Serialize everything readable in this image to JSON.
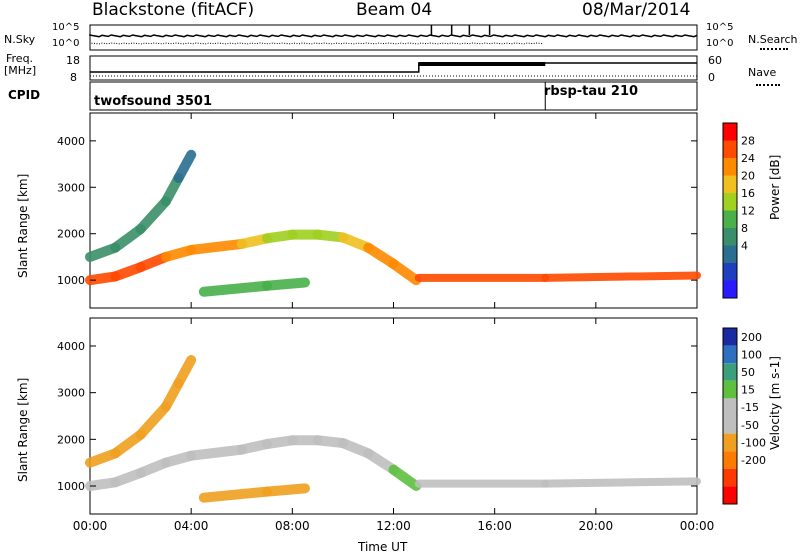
{
  "header": {
    "station": "Blackstone (fitACF)",
    "beam": "Beam 04",
    "date": "08/Mar/2014"
  },
  "top_panel": {
    "left_label": "N.Sky",
    "right_label": "N.Search",
    "left_ticks": [
      "10^5",
      "10^0"
    ],
    "right_ticks": [
      "10^5",
      "10^0"
    ]
  },
  "freq_panel": {
    "left_label_1": "Freq.",
    "left_label_2": "[MHz]",
    "right_label": "Nave",
    "left_ticks": [
      "18",
      "8"
    ],
    "right_ticks": [
      "60",
      "0"
    ]
  },
  "cpid": {
    "label": "CPID",
    "programs": [
      {
        "name": "twofsound 3501",
        "start_hour": 0
      },
      {
        "name": "rbsp-tau 210",
        "start_hour": 18
      }
    ]
  },
  "colors": {
    "power_scale": [
      "#2a1aff",
      "#1f3fbf",
      "#2b6e8f",
      "#3a8f6a",
      "#49b04a",
      "#a0d020",
      "#f0c020",
      "#ff8a00",
      "#ff4a00",
      "#ff0000"
    ],
    "velocity_scale": [
      "#1a2aa0",
      "#2e6fbf",
      "#3a9f7a",
      "#5fc040",
      "#bfbfbf",
      "#bfbfbf",
      "#f0a020",
      "#ff7a00",
      "#ff3a00",
      "#ff0000"
    ]
  },
  "chart_data": [
    {
      "type": "heatmap",
      "title": "Power",
      "ylabel": "Slant Range [km]",
      "colorbar_label": "Power [dB]",
      "colorbar_ticks": [
        "28",
        "24",
        "20",
        "16",
        "12",
        "8",
        "4"
      ],
      "colorbar_range": [
        0,
        32
      ],
      "ylim": [
        400,
        4600
      ],
      "yticks": [
        1000,
        2000,
        3000,
        4000
      ],
      "xlim": [
        0,
        24
      ],
      "bands": [
        {
          "name": "main",
          "points": [
            [
              0,
              1000
            ],
            [
              1,
              1080
            ],
            [
              2,
              1280
            ],
            [
              3,
              1500
            ],
            [
              4,
              1650
            ],
            [
              6,
              1780
            ],
            [
              7,
              1900
            ],
            [
              8,
              1980
            ],
            [
              9,
              1980
            ],
            [
              10,
              1920
            ],
            [
              11,
              1700
            ],
            [
              12,
              1350
            ],
            [
              12.9,
              1000
            ]
          ],
          "values": [
            26,
            26,
            26,
            26,
            24,
            24,
            20,
            18,
            18,
            20,
            22,
            24,
            26
          ]
        },
        {
          "name": "upper",
          "points": [
            [
              0,
              1500
            ],
            [
              1,
              1700
            ],
            [
              2,
              2100
            ],
            [
              3,
              2700
            ],
            [
              3.5,
              3200
            ],
            [
              4,
              3700
            ]
          ],
          "values": [
            10,
            10,
            12,
            12,
            10,
            8
          ]
        },
        {
          "name": "patch",
          "points": [
            [
              4.5,
              750
            ],
            [
              7,
              880
            ],
            [
              8.5,
              950
            ]
          ],
          "values": [
            12,
            14,
            12
          ]
        },
        {
          "name": "lower2",
          "points": [
            [
              13,
              1050
            ],
            [
              18,
              1050
            ],
            [
              24,
              1100
            ]
          ],
          "values": [
            28,
            28,
            28
          ]
        }
      ]
    },
    {
      "type": "heatmap",
      "title": "Velocity",
      "ylabel": "Slant Range [km]",
      "colorbar_label": "Velocity [m s-1]",
      "colorbar_ticks": [
        "200",
        "100",
        "50",
        "15",
        "-15",
        "-50",
        "-100",
        "-200"
      ],
      "colorbar_range": [
        -250,
        250
      ],
      "ylim": [
        400,
        4600
      ],
      "yticks": [
        1000,
        2000,
        3000,
        4000
      ],
      "xlim": [
        0,
        24
      ],
      "xticks": [
        "00:00",
        "04:00",
        "08:00",
        "12:00",
        "16:00",
        "20:00",
        "00:00"
      ],
      "xlabel": "Time UT",
      "bands": [
        {
          "name": "main",
          "points": [
            [
              0,
              1000
            ],
            [
              1,
              1080
            ],
            [
              2,
              1280
            ],
            [
              3,
              1500
            ],
            [
              4,
              1650
            ],
            [
              6,
              1780
            ],
            [
              7,
              1900
            ],
            [
              8,
              1980
            ],
            [
              9,
              1980
            ],
            [
              10,
              1920
            ],
            [
              11,
              1700
            ],
            [
              12,
              1350
            ],
            [
              12.9,
              1000
            ]
          ],
          "values": [
            0,
            0,
            0,
            0,
            0,
            0,
            0,
            0,
            0,
            0,
            40,
            60,
            70
          ]
        },
        {
          "name": "upper",
          "points": [
            [
              0,
              1500
            ],
            [
              1,
              1700
            ],
            [
              2,
              2100
            ],
            [
              3,
              2700
            ],
            [
              3.5,
              3200
            ],
            [
              4,
              3700
            ]
          ],
          "values": [
            -80,
            -60,
            -100,
            -60,
            -50,
            -100
          ]
        },
        {
          "name": "patch",
          "points": [
            [
              4.5,
              750
            ],
            [
              7,
              880
            ],
            [
              8.5,
              950
            ]
          ],
          "values": [
            -60,
            -70,
            -60
          ]
        },
        {
          "name": "lower2",
          "points": [
            [
              13,
              1050
            ],
            [
              18,
              1050
            ],
            [
              24,
              1100
            ]
          ],
          "values": [
            0,
            0,
            0
          ]
        }
      ]
    }
  ]
}
